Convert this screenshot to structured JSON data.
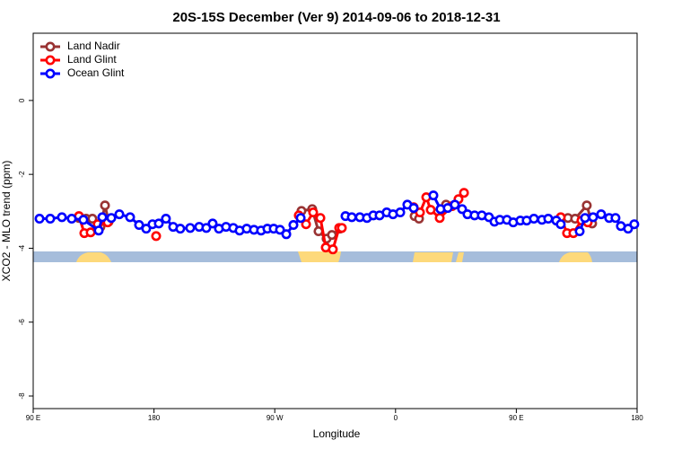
{
  "chart_data": {
    "type": "line",
    "title": "20S-15S December (Ver 9)   2014-09-06 to 2018-12-31",
    "xlabel": "Longitude",
    "ylabel": "XCO2 - MLO trend (ppm)",
    "xlim": [
      90,
      540
    ],
    "ylim": [
      -8.34,
      1.82
    ],
    "xticks": [
      {
        "value": 90,
        "label": "90 E"
      },
      180,
      {
        "value": 270,
        "label": "90 W"
      },
      {
        "value": 360,
        "label": "0"
      },
      {
        "value": 450,
        "label": "90 E"
      },
      {
        "value": 540,
        "label": "180"
      }
    ],
    "yticks": [
      0,
      -2,
      -4,
      -6,
      -8
    ],
    "legend": "top-left",
    "series": [
      {
        "name": "Land Nadir",
        "color": "#993333",
        "x": [
          124.1,
          129.4,
          134.1,
          140.1,
          143.5,
          146.2,
          null,
          289.9,
          297.9,
          302.6,
          308.6,
          312.6,
          318.7,
          null,
          374.2,
          377.5,
          null,
          397.6,
          null,
          488.5,
          493.8,
          502.5,
          506.5
        ],
        "values": [
          -3.18,
          -3.2,
          -3.2,
          -3.42,
          -2.84,
          -3.28,
          null,
          -2.99,
          -2.94,
          -3.54,
          -3.74,
          -3.64,
          -3.47,
          null,
          -3.13,
          -3.2,
          null,
          -2.82,
          null,
          -3.18,
          -3.2,
          -2.84,
          -3.33
        ]
      },
      {
        "name": "Land Glint",
        "color": "#ff0000",
        "x": [
          124.1,
          128.1,
          132.8,
          138.1,
          145.5,
          null,
          181.6,
          null,
          287.9,
          293.3,
          298.6,
          304,
          308,
          313.3,
          318,
          320,
          null,
          373.5,
          378.2,
          382.9,
          386.2,
          392.9,
          402.2,
          406.9,
          411,
          null,
          483.1,
          487.8,
          492.5,
          498.5,
          503.2
        ],
        "values": [
          -3.13,
          -3.59,
          -3.57,
          -3.35,
          -3.3,
          null,
          -3.67,
          null,
          -3.11,
          -3.35,
          -3.03,
          -3.18,
          -3.98,
          -4.03,
          -3.45,
          -3.45,
          null,
          -2.89,
          -3.03,
          -2.62,
          -2.96,
          -3.18,
          -2.86,
          -2.67,
          -2.5,
          null,
          -3.16,
          -3.59,
          -3.59,
          -3.25,
          -3.3
        ]
      },
      {
        "name": "Ocean Glint",
        "color": "#0000ff",
        "x": [
          94.7,
          102.7,
          111.4,
          118.7,
          127.4,
          138.8,
          141.5,
          148.2,
          154.2,
          162.2,
          168.9,
          174.2,
          178.9,
          183.6,
          188.9,
          194.3,
          199.6,
          207,
          213.7,
          219,
          223.7,
          228.4,
          233.7,
          239.1,
          243.8,
          249.1,
          254.5,
          259.8,
          264.5,
          269.2,
          273.9,
          278.6,
          283.9,
          289.3,
          null,
          322.7,
          327.4,
          333.4,
          338.7,
          343.4,
          348.1,
          353.4,
          358.1,
          363.5,
          368.8,
          373.5,
          null,
          388.2,
          393.5,
          398.9,
          404.2,
          409.6,
          413.6,
          418.9,
          424.3,
          429.6,
          433.7,
          437.7,
          443,
          447.7,
          453,
          457.7,
          463.1,
          469.1,
          473.8,
          479.8,
          483.1,
          null,
          497.2,
          501.2,
          507.2,
          513.2,
          519.2,
          523.9,
          527.9,
          533.3,
          537.9
        ],
        "values": [
          -3.2,
          -3.2,
          -3.16,
          -3.2,
          -3.23,
          -3.52,
          -3.16,
          -3.18,
          -3.08,
          -3.16,
          -3.37,
          -3.47,
          -3.35,
          -3.33,
          -3.2,
          -3.42,
          -3.47,
          -3.45,
          -3.42,
          -3.45,
          -3.33,
          -3.47,
          -3.42,
          -3.45,
          -3.52,
          -3.47,
          -3.5,
          -3.52,
          -3.47,
          -3.47,
          -3.5,
          -3.62,
          -3.37,
          -3.18,
          null,
          -3.13,
          -3.16,
          -3.16,
          -3.18,
          -3.11,
          -3.11,
          -3.03,
          -3.08,
          -3.03,
          -2.82,
          -2.91,
          null,
          -2.57,
          -2.94,
          -2.91,
          -2.82,
          -2.94,
          -3.08,
          -3.11,
          -3.11,
          -3.16,
          -3.28,
          -3.23,
          -3.23,
          -3.3,
          -3.25,
          -3.25,
          -3.2,
          -3.23,
          -3.2,
          -3.25,
          -3.35,
          null,
          -3.54,
          -3.18,
          -3.16,
          -3.08,
          -3.18,
          -3.18,
          -3.4,
          -3.47,
          -3.35
        ]
      }
    ]
  }
}
